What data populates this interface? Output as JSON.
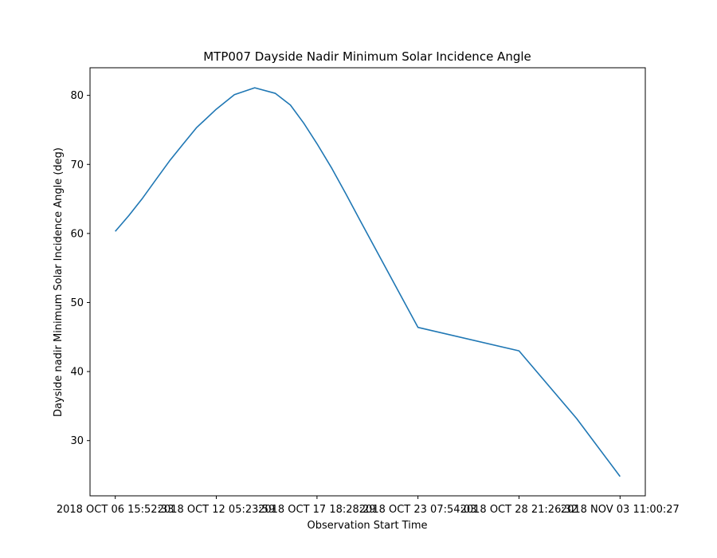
{
  "chart_data": {
    "type": "line",
    "title": "MTP007 Dayside Nadir Minimum Solar Incidence Angle",
    "xlabel": "Observation Start Time",
    "ylabel": "Dayside nadir Minimum Solar Incidence Angle (deg)",
    "x_tick_labels": [
      "2018 OCT 06 15:52:33",
      "2018 OCT 12 05:23:59",
      "2018 OCT 17 18:28:29",
      "2018 OCT 23 07:54:03",
      "2018 OCT 28 21:26:32",
      "2018 NOV 03 11:00:27"
    ],
    "y_ticks": [
      30,
      40,
      50,
      60,
      70,
      80
    ],
    "ylim": [
      22,
      84
    ],
    "grid": false,
    "legend": "none",
    "series": [
      {
        "color": "#1f77b4",
        "points": [
          [
            "2018 OCT 06 15:52:33",
            60.3
          ],
          [
            "2018 OCT 07 09:52:00",
            62.6
          ],
          [
            "2018 OCT 08 03:53:00",
            65.1
          ],
          [
            "2018 OCT 08 21:38:00",
            67.8
          ],
          [
            "2018 OCT 09 15:33:00",
            70.5
          ],
          [
            "2018 OCT 10 09:12:00",
            72.9
          ],
          [
            "2018 OCT 11 03:05:00",
            75.3
          ],
          [
            "2018 OCT 12 05:23:59",
            78.0
          ],
          [
            "2018 OCT 13 05:20:00",
            80.1
          ],
          [
            "2018 OCT 14 08:10:00",
            81.1
          ],
          [
            "2018 OCT 15 11:15:00",
            80.3
          ],
          [
            "2018 OCT 16 07:20:00",
            78.6
          ],
          [
            "2018 OCT 17 00:50:00",
            76.0
          ],
          [
            "2018 OCT 17 18:28:29",
            73.0
          ],
          [
            "2018 OCT 18 14:15:00",
            69.4
          ],
          [
            "2018 OCT 19 08:50:00",
            65.7
          ],
          [
            "2018 OCT 20 03:20:00",
            61.9
          ],
          [
            "2018 OCT 23 07:54:03",
            46.4
          ],
          [
            "2018 OCT 28 21:26:32",
            43.0
          ],
          [
            "2018 NOV 01 01:35:00",
            33.2
          ],
          [
            "2018 NOV 03 11:00:27",
            24.8
          ]
        ]
      }
    ]
  }
}
